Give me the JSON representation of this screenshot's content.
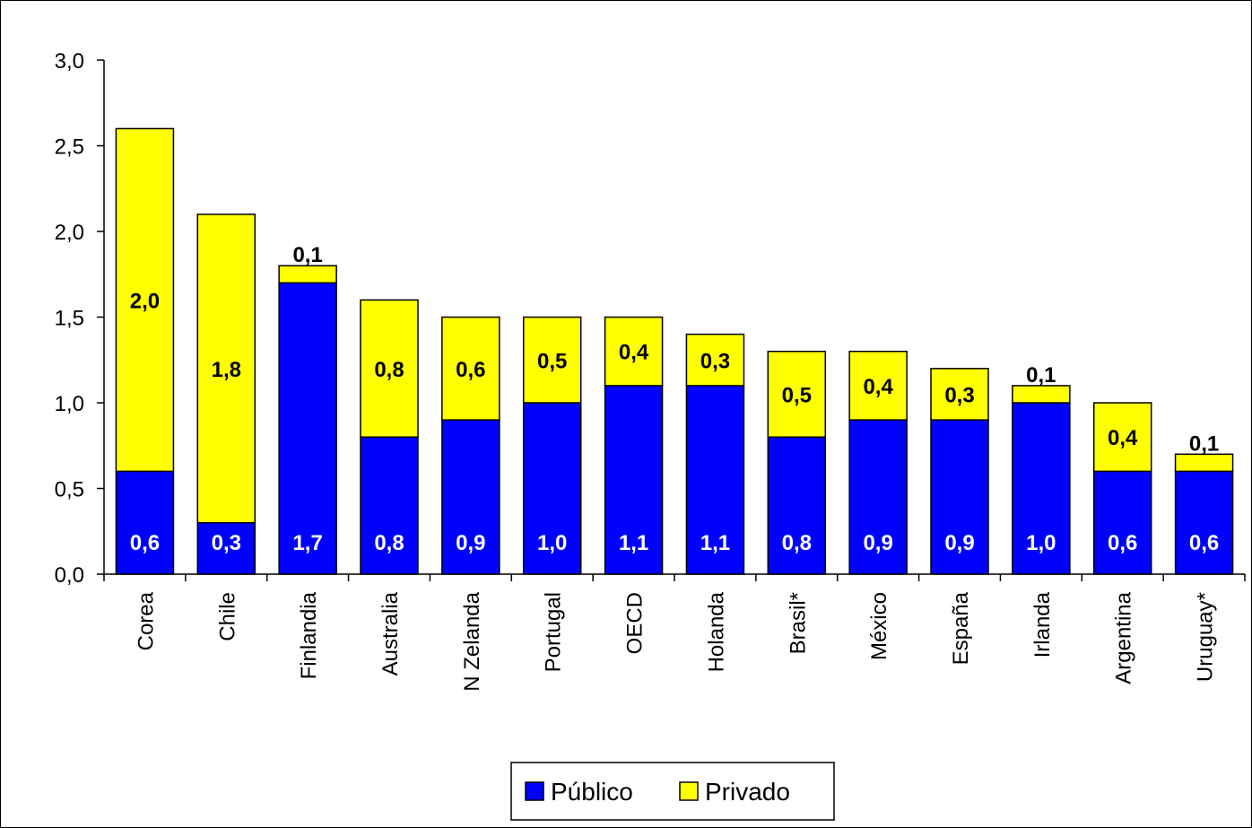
{
  "chart_data": {
    "type": "bar",
    "stacked": true,
    "categories": [
      "Corea",
      "Chile",
      "Finlandia",
      "Australia",
      "N Zelanda",
      "Portugal",
      "OECD",
      "Holanda",
      "Brasil*",
      "México",
      "España",
      "Irlanda",
      "Argentina",
      "Uruguay*"
    ],
    "series": [
      {
        "name": "Público",
        "color": "#0000ff",
        "label_color": "#ffffff",
        "values": [
          0.6,
          0.3,
          1.7,
          0.8,
          0.9,
          1.0,
          1.1,
          1.1,
          0.8,
          0.9,
          0.9,
          1.0,
          0.6,
          0.6
        ],
        "labels": [
          "0,6",
          "0,3",
          "1,7",
          "0,8",
          "0,9",
          "1,0",
          "1,1",
          "1,1",
          "0,8",
          "0,9",
          "0,9",
          "1,0",
          "0,6",
          "0,6"
        ]
      },
      {
        "name": "Privado",
        "color": "#ffff00",
        "label_color": "#000000",
        "values": [
          2.0,
          1.8,
          0.1,
          0.8,
          0.6,
          0.5,
          0.4,
          0.3,
          0.5,
          0.4,
          0.3,
          0.1,
          0.4,
          0.1
        ],
        "labels": [
          "2,0",
          "1,8",
          "0,1",
          "0,8",
          "0,6",
          "0,5",
          "0,4",
          "0,3",
          "0,5",
          "0,4",
          "0,3",
          "0,1",
          "0,4",
          "0,1"
        ]
      }
    ],
    "totals": [
      2.6,
      2.1,
      1.8,
      1.6,
      1.5,
      1.5,
      1.5,
      1.4,
      1.3,
      1.3,
      1.2,
      1.1,
      1.0,
      0.7
    ],
    "ylim": [
      0,
      3.0
    ],
    "yticks": [
      0,
      0.5,
      1.0,
      1.5,
      2.0,
      2.5,
      3.0
    ],
    "ytick_labels": [
      "0,0",
      "0,5",
      "1,0",
      "1,5",
      "2,0",
      "2,5",
      "3,0"
    ],
    "grid": false,
    "legend": {
      "position": "bottom-center",
      "entries": [
        "Público",
        "Privado"
      ]
    }
  }
}
